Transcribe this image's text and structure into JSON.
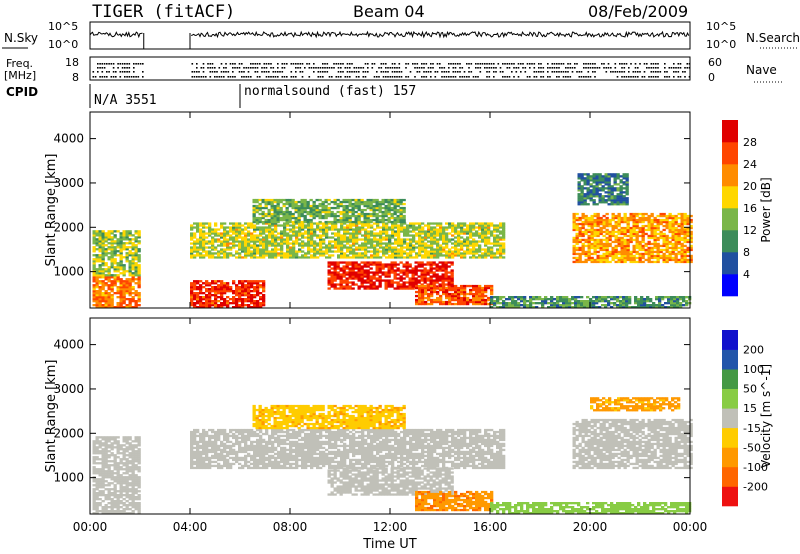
{
  "header": {
    "radar": "TIGER (fitACF)",
    "beam": "Beam 04",
    "date": "08/Feb/2009"
  },
  "top_panels": {
    "nsky_label": "N.Sky",
    "nsearch_label": "N.Search",
    "noise_ticks": [
      "10^5",
      "10^0"
    ],
    "freq_label": "Freq.",
    "freq_unit": "[MHz]",
    "freq_ticks": [
      "18",
      "8"
    ],
    "nave_label": "Nave",
    "nave_ticks": [
      "60",
      "0"
    ],
    "cpid_label": "CPID",
    "cpid_segments": [
      {
        "start_hr": 0,
        "end_hr": 6,
        "text": "N/A 3551"
      },
      {
        "start_hr": 6,
        "end_hr": 24,
        "text": "normalsound (fast) 157"
      }
    ]
  },
  "colors": {
    "power": [
      "#0000ff",
      "#2050a0",
      "#3c8c5a",
      "#7ab648",
      "#ffd700",
      "#ff8c00",
      "#ff4500",
      "#e00000"
    ],
    "velocity": [
      "#ee1111",
      "#ff6600",
      "#ff9900",
      "#ffcc00",
      "#c0c0b8",
      "#88cc44",
      "#449944",
      "#2255aa",
      "#1111cc"
    ]
  },
  "chart_data": [
    {
      "type": "heatmap",
      "title": "Power",
      "ylabel": "Slant Range [km]",
      "xlabel": "Time UT",
      "x_range_hr": [
        0,
        24
      ],
      "ylim": [
        180,
        4600
      ],
      "y_ticks": [
        1000,
        2000,
        3000,
        4000
      ],
      "colorbar": {
        "label": "Power [dB]",
        "ticks": [
          4,
          8,
          12,
          16,
          20,
          24,
          28
        ],
        "range": [
          0,
          30
        ]
      },
      "data_gap_hr": [
        2.1,
        4.0
      ],
      "regions": [
        {
          "t0": 0.1,
          "t1": 2.0,
          "r0": 180,
          "r1": 900,
          "value": 22
        },
        {
          "t0": 0.1,
          "t1": 2.0,
          "r0": 900,
          "r1": 1900,
          "value": 14
        },
        {
          "t0": 4.0,
          "t1": 7.0,
          "r0": 180,
          "r1": 800,
          "value": 26
        },
        {
          "t0": 4.0,
          "t1": 16.5,
          "r0": 1300,
          "r1": 2100,
          "value": 15
        },
        {
          "t0": 6.5,
          "t1": 12.5,
          "r0": 2100,
          "r1": 2600,
          "value": 12
        },
        {
          "t0": 9.5,
          "t1": 14.5,
          "r0": 600,
          "r1": 1200,
          "value": 27
        },
        {
          "t0": 13.0,
          "t1": 16.0,
          "r0": 250,
          "r1": 700,
          "value": 24
        },
        {
          "t0": 19.3,
          "t1": 24.0,
          "r0": 1200,
          "r1": 2300,
          "value": 20
        },
        {
          "t0": 19.5,
          "t1": 21.5,
          "r0": 2500,
          "r1": 3200,
          "value": 8
        },
        {
          "t0": 16.0,
          "t1": 24.0,
          "r0": 180,
          "r1": 450,
          "value": 10
        }
      ]
    },
    {
      "type": "heatmap",
      "title": "Velocity",
      "ylabel": "Slant Range [km]",
      "xlabel": "Time UT",
      "x_range_hr": [
        0,
        24
      ],
      "ylim": [
        180,
        4600
      ],
      "y_ticks": [
        1000,
        2000,
        3000,
        4000
      ],
      "colorbar": {
        "label": "Velocity [m s^-1]",
        "ticks": [
          -200,
          -100,
          -50,
          -15,
          15,
          50,
          100,
          200
        ],
        "range": [
          -250,
          250
        ]
      },
      "data_gap_hr": [
        2.1,
        4.0
      ],
      "regions": [
        {
          "t0": 0.1,
          "t1": 2.0,
          "r0": 180,
          "r1": 1900,
          "value": 0
        },
        {
          "t0": 4.0,
          "t1": 16.5,
          "r0": 1200,
          "r1": 2100,
          "value": 0
        },
        {
          "t0": 6.5,
          "t1": 12.5,
          "r0": 2100,
          "r1": 2600,
          "value": -40
        },
        {
          "t0": 9.5,
          "t1": 14.5,
          "r0": 600,
          "r1": 1200,
          "value": 0
        },
        {
          "t0": 13.0,
          "t1": 16.0,
          "r0": 250,
          "r1": 700,
          "value": -90
        },
        {
          "t0": 19.3,
          "t1": 24.0,
          "r0": 1200,
          "r1": 2300,
          "value": 0
        },
        {
          "t0": 20.0,
          "t1": 23.5,
          "r0": 2500,
          "r1": 2800,
          "value": -60
        },
        {
          "t0": 16.0,
          "t1": 24.0,
          "r0": 180,
          "r1": 450,
          "value": 30
        }
      ]
    }
  ],
  "x_axis": {
    "ticks": [
      "00:00",
      "04:00",
      "08:00",
      "12:00",
      "16:00",
      "20:00",
      "00:00"
    ],
    "label": "Time UT"
  }
}
